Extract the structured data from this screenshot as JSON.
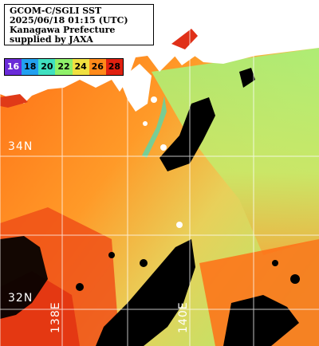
{
  "header": {
    "lines": [
      "GCOM-C/SGLI SST",
      "2025/06/18 01:15 (UTC)",
      "Kanagawa Prefecture",
      "supplied by JAXA"
    ]
  },
  "legend": {
    "items": [
      {
        "label": "16",
        "bg": "#6a2bd8",
        "fg": "#ffffff"
      },
      {
        "label": "18",
        "bg": "#22a0f0",
        "fg": "#000000"
      },
      {
        "label": "20",
        "bg": "#3fe0c0",
        "fg": "#000000"
      },
      {
        "label": "22",
        "bg": "#8ff06a",
        "fg": "#000000"
      },
      {
        "label": "24",
        "bg": "#f0e040",
        "fg": "#000000"
      },
      {
        "label": "26",
        "bg": "#ff8a1a",
        "fg": "#000000"
      },
      {
        "label": "28",
        "bg": "#e02010",
        "fg": "#000000"
      }
    ]
  },
  "grid": {
    "labels": {
      "lat_34": "34N",
      "lat_32": "32N",
      "lon_138": "138E",
      "lon_140": "140E"
    },
    "grid_color": "#ffffff"
  },
  "colors": {
    "land": "#ffffff",
    "cloud": "#000000",
    "sst_warm": "#ff7a10",
    "sst_hot": "#e63a12",
    "sst_cool": "#8ff06a"
  }
}
